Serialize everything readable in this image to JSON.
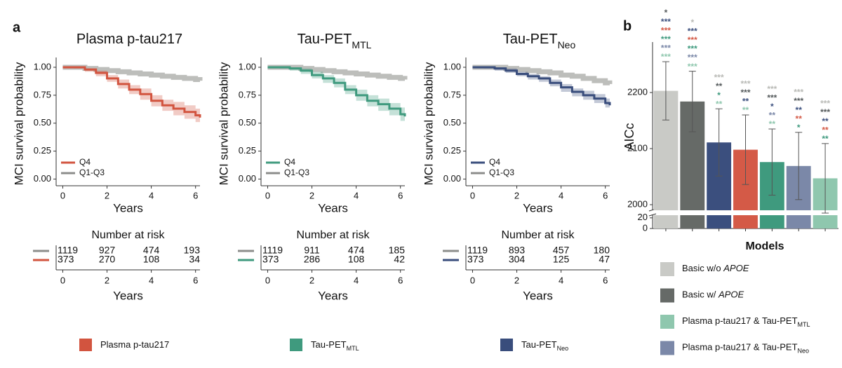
{
  "panel_labels": [
    "a",
    "b"
  ],
  "chart_data": [
    {
      "type": "line",
      "step": true,
      "title": {
        "text": "Plasma p-tau217"
      },
      "xlabel": "Years",
      "ylabel": "MCI survival probability",
      "x": [
        0,
        0.5,
        1,
        1.5,
        2,
        2.5,
        3,
        3.5,
        4,
        4.5,
        5,
        5.5,
        6,
        6.2
      ],
      "xlim": [
        -0.3,
        6.2
      ],
      "ylim": [
        -0.06,
        1.05
      ],
      "xticks": [
        0,
        2,
        4,
        6
      ],
      "yticks": [
        {
          "value": 0,
          "label": "0.00"
        },
        {
          "value": 0.25,
          "label": "0.25"
        },
        {
          "value": 0.5,
          "label": "0.50"
        },
        {
          "value": 0.75,
          "label": "0.75"
        },
        {
          "value": 1,
          "label": "1.00"
        }
      ],
      "legend": "lower left",
      "series": [
        {
          "name": "Q4",
          "color": "#d2543f",
          "values": [
            1,
            1,
            0.98,
            0.95,
            0.9,
            0.85,
            0.8,
            0.76,
            0.7,
            0.66,
            0.63,
            0.6,
            0.57,
            0.55
          ],
          "lower": [
            1,
            0.99,
            0.96,
            0.92,
            0.87,
            0.81,
            0.76,
            0.71,
            0.65,
            0.61,
            0.57,
            0.54,
            0.51,
            0.48
          ],
          "upper": [
            1,
            1,
            0.99,
            0.97,
            0.93,
            0.89,
            0.84,
            0.81,
            0.75,
            0.71,
            0.69,
            0.66,
            0.63,
            0.62
          ]
        },
        {
          "name": "Q1-Q3",
          "color": "#bdbebb",
          "values": [
            1,
            1,
            0.99,
            0.98,
            0.97,
            0.96,
            0.95,
            0.94,
            0.93,
            0.92,
            0.91,
            0.9,
            0.89,
            0.88
          ]
        }
      ]
    },
    {
      "type": "line",
      "step": true,
      "title": {
        "text": "Tau-PET",
        "sub": "MTL"
      },
      "xlabel": "Years",
      "ylabel": "MCI survival probability",
      "x": [
        0,
        0.5,
        1,
        1.5,
        2,
        2.5,
        3,
        3.5,
        4,
        4.5,
        5,
        5.5,
        6,
        6.2
      ],
      "xlim": [
        -0.3,
        6.2
      ],
      "ylim": [
        -0.06,
        1.05
      ],
      "xticks": [
        0,
        2,
        4,
        6
      ],
      "yticks": [
        {
          "value": 0,
          "label": "0.00"
        },
        {
          "value": 0.25,
          "label": "0.25"
        },
        {
          "value": 0.5,
          "label": "0.50"
        },
        {
          "value": 0.75,
          "label": "0.75"
        },
        {
          "value": 1,
          "label": "1.00"
        }
      ],
      "legend": "lower left",
      "series": [
        {
          "name": "Q4",
          "color": "#3f9a7e",
          "values": [
            1,
            1,
            0.99,
            0.97,
            0.93,
            0.9,
            0.86,
            0.8,
            0.75,
            0.7,
            0.67,
            0.63,
            0.58,
            0.56
          ],
          "lower": [
            1,
            0.99,
            0.97,
            0.94,
            0.9,
            0.86,
            0.82,
            0.76,
            0.7,
            0.65,
            0.61,
            0.57,
            0.52,
            0.5
          ],
          "upper": [
            1,
            1,
            1,
            0.99,
            0.96,
            0.93,
            0.9,
            0.84,
            0.8,
            0.75,
            0.72,
            0.68,
            0.64,
            0.62
          ]
        },
        {
          "name": "Q1-Q3",
          "color": "#bdbebb",
          "values": [
            1,
            1,
            1,
            0.99,
            0.98,
            0.97,
            0.96,
            0.95,
            0.94,
            0.93,
            0.92,
            0.91,
            0.9,
            0.89
          ]
        }
      ]
    },
    {
      "type": "line",
      "step": true,
      "title": {
        "text": "Tau-PET",
        "sub": "Neo"
      },
      "xlabel": "Years",
      "ylabel": "MCI survival probability",
      "x": [
        0,
        0.5,
        1,
        1.5,
        2,
        2.5,
        3,
        3.5,
        4,
        4.5,
        5,
        5.5,
        6,
        6.2
      ],
      "xlim": [
        -0.3,
        6.2
      ],
      "ylim": [
        -0.06,
        1.05
      ],
      "xticks": [
        0,
        2,
        4,
        6
      ],
      "yticks": [
        {
          "value": 0,
          "label": "0.00"
        },
        {
          "value": 0.25,
          "label": "0.25"
        },
        {
          "value": 0.5,
          "label": "0.50"
        },
        {
          "value": 0.75,
          "label": "0.75"
        },
        {
          "value": 1,
          "label": "1.00"
        }
      ],
      "legend": "lower left",
      "series": [
        {
          "name": "Q4",
          "color": "#394d7c",
          "values": [
            1,
            1,
            0.99,
            0.97,
            0.94,
            0.92,
            0.9,
            0.86,
            0.82,
            0.78,
            0.75,
            0.72,
            0.68,
            0.66
          ],
          "lower": [
            1,
            0.99,
            0.97,
            0.95,
            0.92,
            0.89,
            0.87,
            0.83,
            0.78,
            0.74,
            0.71,
            0.68,
            0.64,
            0.62
          ],
          "upper": [
            1,
            1,
            1,
            0.99,
            0.96,
            0.94,
            0.92,
            0.89,
            0.85,
            0.81,
            0.79,
            0.76,
            0.72,
            0.7
          ]
        },
        {
          "name": "Q1-Q3",
          "color": "#bdbebb",
          "values": [
            1,
            1,
            1,
            0.99,
            0.98,
            0.97,
            0.96,
            0.95,
            0.93,
            0.92,
            0.9,
            0.88,
            0.86,
            0.85
          ]
        }
      ]
    },
    {
      "type": "bar",
      "ylabel": "AICc",
      "xlabel": "Models",
      "values": [
        2203,
        2184,
        2111,
        2098,
        2076,
        2069,
        2047
      ],
      "errors": [
        52,
        54,
        60,
        62,
        59,
        60,
        62
      ],
      "colors": [
        "#c9cac6",
        "#666a67",
        "#3b4f7e",
        "#d45a47",
        "#3f9a7e",
        "#7b88a8",
        "#8fc7ae"
      ],
      "ylim": [
        0,
        2290
      ],
      "ybreak": [
        25,
        1990
      ],
      "yticks": [
        0,
        20,
        2000,
        2100,
        2200
      ],
      "significance": [
        [
          {
            "text": "*",
            "color": "#555a5c"
          },
          {
            "text": "***",
            "color": "#3b4f7e"
          },
          {
            "text": "***",
            "color": "#d45a47"
          },
          {
            "text": "***",
            "color": "#3f9a7e"
          },
          {
            "text": "***",
            "color": "#7b88a8"
          },
          {
            "text": "***",
            "color": "#8fc7ae"
          }
        ],
        [
          {
            "text": "*",
            "color": "#b9bab6"
          },
          {
            "text": "***",
            "color": "#3b4f7e"
          },
          {
            "text": "***",
            "color": "#d45a47"
          },
          {
            "text": "***",
            "color": "#3f9a7e"
          },
          {
            "text": "***",
            "color": "#7b88a8"
          },
          {
            "text": "***",
            "color": "#8fc7ae"
          }
        ],
        [
          {
            "text": "***",
            "color": "#b9bab6"
          },
          {
            "text": "**",
            "color": "#555a5c"
          },
          {
            "text": "*",
            "color": "#3f9a7e"
          },
          {
            "text": "**",
            "color": "#8fc7ae"
          }
        ],
        [
          {
            "text": "***",
            "color": "#b9bab6"
          },
          {
            "text": "***",
            "color": "#555a5c"
          },
          {
            "text": "**",
            "color": "#3b4f7e"
          },
          {
            "text": "**",
            "color": "#8fc7ae"
          }
        ],
        [
          {
            "text": "***",
            "color": "#b9bab6"
          },
          {
            "text": "***",
            "color": "#555a5c"
          },
          {
            "text": "*",
            "color": "#3b4f7e"
          },
          {
            "text": "**",
            "color": "#7b88a8"
          },
          {
            "text": "**",
            "color": "#8fc7ae"
          }
        ],
        [
          {
            "text": "***",
            "color": "#b9bab6"
          },
          {
            "text": "***",
            "color": "#555a5c"
          },
          {
            "text": "**",
            "color": "#3b4f7e"
          },
          {
            "text": "**",
            "color": "#d45a47"
          },
          {
            "text": "*",
            "color": "#3f9a7e"
          }
        ],
        [
          {
            "text": "***",
            "color": "#b9bab6"
          },
          {
            "text": "***",
            "color": "#555a5c"
          },
          {
            "text": "**",
            "color": "#3b4f7e"
          },
          {
            "text": "**",
            "color": "#d45a47"
          },
          {
            "text": "**",
            "color": "#3f9a7e"
          }
        ]
      ],
      "legend": [
        {
          "text": "Basic w/o ",
          "italic": "APOE",
          "color": "#c9cac6"
        },
        {
          "text": "Basic w/ ",
          "italic": "APOE",
          "color": "#666a67"
        },
        {
          "text": "Plasma p-tau217 & Tau-PET",
          "sub": "MTL",
          "color": "#8fc7ae"
        },
        {
          "text": "Plasma p-tau217 & Tau-PET",
          "sub": "Neo",
          "color": "#7b88a8"
        }
      ]
    }
  ],
  "risk_tables": [
    {
      "title": "Number at risk",
      "xlabel": "Years",
      "xticks": [
        0,
        2,
        4,
        6
      ],
      "rows": [
        {
          "color": "#8c8d8b",
          "values": [
            1119,
            927,
            474,
            193
          ]
        },
        {
          "color": "#d2543f",
          "values": [
            373,
            270,
            108,
            34
          ]
        }
      ]
    },
    {
      "title": "Number at risk",
      "xlabel": "Years",
      "xticks": [
        0,
        2,
        4,
        6
      ],
      "rows": [
        {
          "color": "#8c8d8b",
          "values": [
            1119,
            911,
            474,
            185
          ]
        },
        {
          "color": "#3f9a7e",
          "values": [
            373,
            286,
            108,
            42
          ]
        }
      ]
    },
    {
      "title": "Number at risk",
      "xlabel": "Years",
      "xticks": [
        0,
        2,
        4,
        6
      ],
      "rows": [
        {
          "color": "#8c8d8b",
          "values": [
            1119,
            893,
            457,
            180
          ]
        },
        {
          "color": "#394d7c",
          "values": [
            373,
            304,
            125,
            47
          ]
        }
      ]
    }
  ],
  "group_legend": [
    {
      "text": "Plasma p-tau217",
      "color": "#d2543f"
    },
    {
      "text": "Tau-PET",
      "sub": "MTL",
      "color": "#3f9a7e"
    },
    {
      "text": "Tau-PET",
      "sub": "Neo",
      "color": "#394d7c"
    }
  ]
}
